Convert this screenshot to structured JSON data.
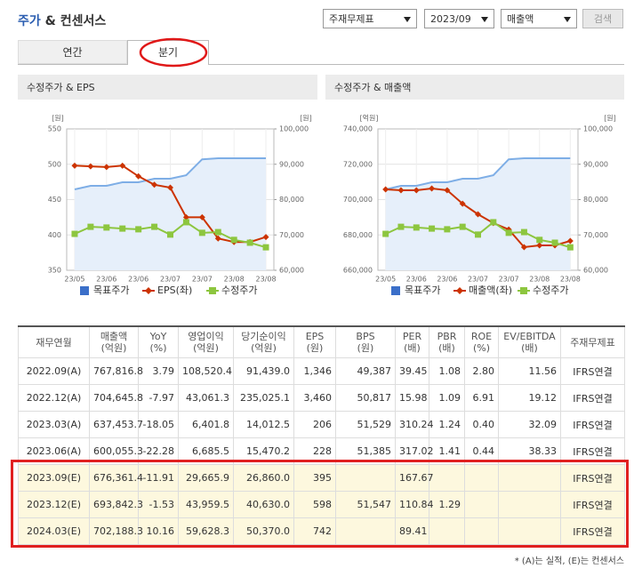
{
  "header": {
    "title_accent": "주가",
    "title": "& 컨센서스",
    "selects": [
      "주재무제표",
      "2023/09",
      "매출액"
    ],
    "button": "검색"
  },
  "tabs": [
    "연간",
    "분기"
  ],
  "chart_data": [
    {
      "type": "line",
      "title": "수정주가 & EPS",
      "y_label": "[원]",
      "y2_label": "[원]",
      "categories": [
        "23/05",
        null,
        "23/06",
        null,
        "23/06",
        null,
        "23/07",
        null,
        "23/07",
        null,
        "23/08",
        null,
        "23/08"
      ],
      "ylim": [
        350,
        550
      ],
      "yticks": [
        350,
        400,
        450,
        500,
        550
      ],
      "y2lim": [
        60000,
        100000
      ],
      "y2ticks": [
        {
          "value": 60000,
          "label": "60,000"
        },
        {
          "value": 70000,
          "label": "70,000"
        },
        {
          "value": 80000,
          "label": "80,000"
        },
        {
          "value": 90000,
          "label": "90,000"
        },
        {
          "value": 100000,
          "label": "100,000"
        }
      ],
      "grid": true,
      "series": [
        {
          "name": "목표주가",
          "color": "#3b6fc9",
          "style": "area",
          "axis": "y2",
          "values": [
            82900,
            83900,
            83900,
            84900,
            84900,
            85900,
            85900,
            86900,
            91400,
            91700,
            91700,
            91700,
            91700
          ]
        },
        {
          "name": "EPS(좌)",
          "color": "#cc3300",
          "style": "line",
          "marker": "diamond",
          "axis": "y",
          "values": [
            498,
            497,
            496,
            498,
            483,
            471,
            467,
            425,
            425,
            395,
            390,
            390,
            397
          ]
        },
        {
          "name": "수정주가",
          "color": "#8dc63f",
          "style": "line",
          "marker": "square",
          "axis": "y2",
          "values": [
            70300,
            72300,
            72100,
            71800,
            71600,
            72300,
            70100,
            73600,
            70600,
            70800,
            68600,
            67800,
            66500
          ]
        }
      ]
    },
    {
      "type": "line",
      "title": "수정주가 & 매출액",
      "y_label": "[억원]",
      "y2_label": "[원]",
      "categories": [
        "23/05",
        null,
        "23/06",
        null,
        "23/06",
        null,
        "23/07",
        null,
        "23/07",
        null,
        "23/08",
        null,
        "23/08"
      ],
      "ylim": [
        660000,
        740000
      ],
      "yticks": [
        {
          "value": 660000,
          "label": "660,000"
        },
        {
          "value": 680000,
          "label": "680,000"
        },
        {
          "value": 700000,
          "label": "700,000"
        },
        {
          "value": 720000,
          "label": "720,000"
        },
        {
          "value": 740000,
          "label": "740,000"
        }
      ],
      "y2lim": [
        60000,
        100000
      ],
      "y2ticks": [
        {
          "value": 60000,
          "label": "60,000"
        },
        {
          "value": 70000,
          "label": "70,000"
        },
        {
          "value": 80000,
          "label": "80,000"
        },
        {
          "value": 90000,
          "label": "90,000"
        },
        {
          "value": 100000,
          "label": "100,000"
        }
      ],
      "grid": true,
      "series": [
        {
          "name": "목표주가",
          "color": "#3b6fc9",
          "style": "area",
          "axis": "y2",
          "values": [
            82900,
            83900,
            83900,
            84900,
            84900,
            85900,
            85900,
            86900,
            91400,
            91700,
            91700,
            91700,
            91700
          ]
        },
        {
          "name": "매출액(좌)",
          "color": "#cc3300",
          "style": "line",
          "marker": "diamond",
          "axis": "y",
          "values": [
            705800,
            705300,
            705300,
            706300,
            705300,
            697700,
            691700,
            686700,
            683100,
            673100,
            674100,
            674100,
            676600
          ]
        },
        {
          "name": "수정주가",
          "color": "#8dc63f",
          "style": "line",
          "marker": "square",
          "axis": "y2",
          "values": [
            70300,
            72300,
            72100,
            71800,
            71600,
            72300,
            70100,
            73600,
            70600,
            70800,
            68600,
            67800,
            66500
          ]
        }
      ]
    }
  ],
  "table": {
    "columns": [
      {
        "name": "재무연월"
      },
      {
        "name": "매출액",
        "unit": "(억원)"
      },
      {
        "name": "YoY",
        "unit": "(%)"
      },
      {
        "name": "영업이익",
        "unit": "(억원)"
      },
      {
        "name": "당기순이익",
        "unit": "(억원)"
      },
      {
        "name": "EPS",
        "unit": "(원)"
      },
      {
        "name": "BPS",
        "unit": "(원)"
      },
      {
        "name": "PER",
        "unit": "(배)"
      },
      {
        "name": "PBR",
        "unit": "(배)"
      },
      {
        "name": "ROE",
        "unit": "(%)"
      },
      {
        "name": "EV/EBITDA",
        "unit": "(배)"
      },
      {
        "name": "주재무제표"
      }
    ],
    "rows": [
      [
        "2022.09(A)",
        "767,816.8",
        "3.79",
        "108,520.4",
        "91,439.0",
        "1,346",
        "49,387",
        "39.45",
        "1.08",
        "2.80",
        "11.56",
        "IFRS연결"
      ],
      [
        "2022.12(A)",
        "704,645.8",
        "-7.97",
        "43,061.3",
        "235,025.1",
        "3,460",
        "50,817",
        "15.98",
        "1.09",
        "6.91",
        "19.12",
        "IFRS연결"
      ],
      [
        "2023.03(A)",
        "637,453.7",
        "-18.05",
        "6,401.8",
        "14,012.5",
        "206",
        "51,529",
        "310.24",
        "1.24",
        "0.40",
        "32.09",
        "IFRS연결"
      ],
      [
        "2023.06(A)",
        "600,055.3",
        "-22.28",
        "6,685.5",
        "15,470.2",
        "228",
        "51,385",
        "317.02",
        "1.41",
        "0.44",
        "38.33",
        "IFRS연결"
      ],
      [
        "2023.09(E)",
        "676,361.4",
        "-11.91",
        "29,665.9",
        "26,860.0",
        "395",
        null,
        "167.67",
        null,
        null,
        null,
        "IFRS연결"
      ],
      [
        "2023.12(E)",
        "693,842.3",
        "-1.53",
        "43,959.5",
        "40,630.0",
        "598",
        "51,547",
        "110.84",
        "1.29",
        null,
        null,
        "IFRS연결"
      ],
      [
        "2024.03(E)",
        "702,188.3",
        "10.16",
        "59,628.3",
        "50,370.0",
        "742",
        null,
        "89.41",
        null,
        null,
        null,
        "IFRS연결"
      ]
    ]
  },
  "footnote": "* (A)는 실적, (E)는 컨센서스"
}
